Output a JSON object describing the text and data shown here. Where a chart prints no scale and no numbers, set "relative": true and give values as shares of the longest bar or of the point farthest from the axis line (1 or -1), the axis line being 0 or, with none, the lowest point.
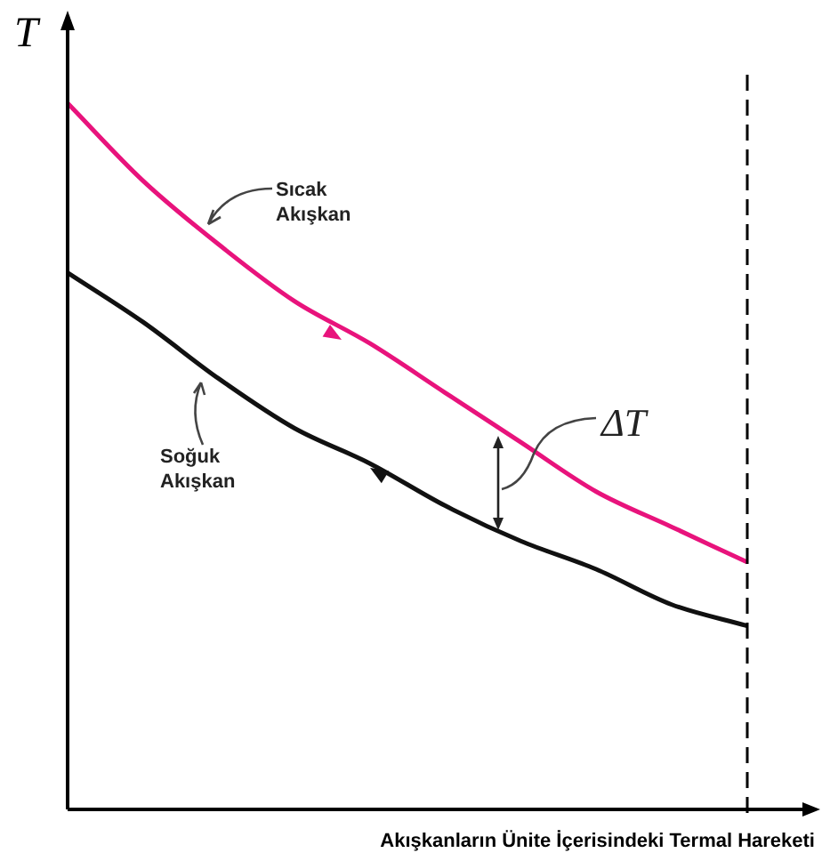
{
  "chart_data": {
    "type": "line",
    "relative": true,
    "xlabel": "Akışkanların Ünite İçerisindeki Termal Hareketi",
    "ylabel": "T",
    "legend": false,
    "marker": "none",
    "line_style": "solid",
    "categories": [
      null,
      null,
      null,
      null,
      null,
      null,
      null,
      null,
      null,
      null
    ],
    "series": [
      {
        "name": "Sıcak Akışkan",
        "color": "#e8137c",
        "values": [
          1,
          0.89,
          0.8,
          0.72,
          0.66,
          0.59,
          0.52,
          0.45,
          0.4,
          0.35
        ]
      },
      {
        "name": "Soğuk Akışkan",
        "color": "#111111",
        "values": [
          0.76,
          0.69,
          0.61,
          0.54,
          0.49,
          0.43,
          0.38,
          0.34,
          0.29,
          0.26
        ]
      }
    ],
    "annotations": [
      "ΔT"
    ]
  }
}
